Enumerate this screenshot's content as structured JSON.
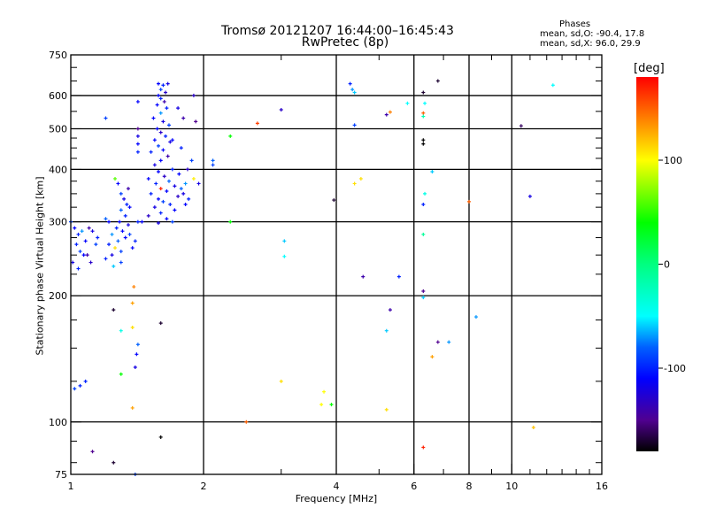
{
  "chart_data": {
    "type": "scatter",
    "title": "Tromsø 20121207 16:44:00–16:45:43",
    "subtitle": "RwPretec (8p)",
    "annotation": {
      "heading": "Phases",
      "line_o": "mean, sd,O: -90.4, 17.8",
      "line_x": "mean, sd,X:  96.0, 29.9"
    },
    "xlabel": "Frequency [MHz]",
    "ylabel": "Stationary phase Virtual Height [km]",
    "xscale": "log",
    "yscale": "log",
    "xlim": [
      1,
      16
    ],
    "ylim": [
      75,
      750
    ],
    "x_ticks": [
      1,
      2,
      4,
      6,
      8,
      10,
      16
    ],
    "x_tick_labels": [
      "1",
      "2",
      "4",
      "6",
      "8",
      "10",
      "16"
    ],
    "x_grid": [
      2,
      4,
      6,
      8,
      10
    ],
    "y_ticks": [
      75,
      100,
      200,
      300,
      400,
      500,
      600,
      750
    ],
    "y_tick_labels": [
      "75",
      "100",
      "200",
      "300",
      "400",
      "500",
      "600",
      "750"
    ],
    "y_grid": [
      100,
      200,
      300,
      400,
      500,
      600
    ],
    "grid": true,
    "colorbar": {
      "label": "[deg]",
      "range": [
        -180,
        180
      ],
      "ticks": [
        100,
        0,
        -100
      ],
      "tick_labels": [
        "100",
        "0",
        "-100"
      ],
      "stops": [
        [
          -180,
          "#000000"
        ],
        [
          -150,
          "#500090"
        ],
        [
          -110,
          "#0000ff"
        ],
        [
          -80,
          "#0060ff"
        ],
        [
          -50,
          "#00ffff"
        ],
        [
          0,
          "#00ff80"
        ],
        [
          40,
          "#00ff00"
        ],
        [
          100,
          "#ffff00"
        ],
        [
          140,
          "#ff8000"
        ],
        [
          180,
          "#ff0000"
        ]
      ]
    },
    "point_columns": [
      "frequency_MHz",
      "height_km",
      "phase_deg"
    ],
    "points": [
      [
        1.58,
        640,
        -110
      ],
      [
        1.62,
        635,
        -100
      ],
      [
        1.6,
        620,
        -90
      ],
      [
        1.66,
        640,
        -120
      ],
      [
        1.64,
        610,
        -130
      ],
      [
        1.58,
        600,
        -110
      ],
      [
        1.6,
        590,
        -100
      ],
      [
        1.63,
        580,
        -140
      ],
      [
        1.57,
        570,
        -110
      ],
      [
        1.65,
        560,
        -100
      ],
      [
        1.6,
        545,
        -70
      ],
      [
        1.54,
        530,
        -110
      ],
      [
        1.62,
        520,
        -120
      ],
      [
        1.67,
        510,
        -90
      ],
      [
        1.57,
        500,
        -110
      ],
      [
        1.6,
        490,
        -130
      ],
      [
        1.64,
        480,
        -100
      ],
      [
        1.55,
        470,
        -110
      ],
      [
        1.68,
        465,
        -120
      ],
      [
        1.58,
        455,
        -90
      ],
      [
        1.62,
        445,
        -110
      ],
      [
        1.52,
        440,
        -100
      ],
      [
        1.66,
        430,
        -140
      ],
      [
        1.6,
        420,
        -110
      ],
      [
        1.55,
        410,
        -120
      ],
      [
        1.7,
        400,
        -100
      ],
      [
        1.58,
        395,
        -110
      ],
      [
        1.63,
        385,
        -130
      ],
      [
        1.5,
        380,
        -110
      ],
      [
        1.67,
        375,
        -80
      ],
      [
        1.56,
        370,
        -100
      ],
      [
        1.72,
        365,
        -120
      ],
      [
        1.6,
        360,
        170
      ],
      [
        1.65,
        355,
        -110
      ],
      [
        1.52,
        350,
        -100
      ],
      [
        1.75,
        345,
        -130
      ],
      [
        1.58,
        340,
        -110
      ],
      [
        1.62,
        335,
        -90
      ],
      [
        1.68,
        330,
        -100
      ],
      [
        1.55,
        325,
        -120
      ],
      [
        1.72,
        320,
        -110
      ],
      [
        1.6,
        315,
        -100
      ],
      [
        1.5,
        310,
        -130
      ],
      [
        1.65,
        305,
        -110
      ],
      [
        1.7,
        300,
        -90
      ],
      [
        1.58,
        298,
        -120
      ],
      [
        1.45,
        300,
        -110
      ],
      [
        1.42,
        300,
        -100
      ],
      [
        1.78,
        360,
        -80
      ],
      [
        1.82,
        370,
        -70
      ],
      [
        1.8,
        350,
        -120
      ],
      [
        1.85,
        340,
        -100
      ],
      [
        1.76,
        390,
        -110
      ],
      [
        1.88,
        420,
        -90
      ],
      [
        1.9,
        380,
        105
      ],
      [
        1.84,
        400,
        -130
      ],
      [
        1.8,
        530,
        -140
      ],
      [
        1.9,
        600,
        -130
      ],
      [
        1.92,
        520,
        -150
      ],
      [
        1.75,
        560,
        -120
      ],
      [
        1.7,
        470,
        -110
      ],
      [
        1.78,
        450,
        -100
      ],
      [
        1.82,
        330,
        -110
      ],
      [
        1.95,
        370,
        -120
      ],
      [
        1.28,
        370,
        -110
      ],
      [
        1.3,
        350,
        -90
      ],
      [
        1.32,
        340,
        -120
      ],
      [
        1.34,
        330,
        -100
      ],
      [
        1.36,
        325,
        -110
      ],
      [
        1.3,
        320,
        -80
      ],
      [
        1.33,
        310,
        -100
      ],
      [
        1.29,
        300,
        -110
      ],
      [
        1.35,
        295,
        -120
      ],
      [
        1.27,
        290,
        -100
      ],
      [
        1.31,
        285,
        -110
      ],
      [
        1.36,
        280,
        -90
      ],
      [
        1.24,
        280,
        -70
      ],
      [
        1.28,
        270,
        -80
      ],
      [
        1.33,
        275,
        -110
      ],
      [
        1.22,
        265,
        -100
      ],
      [
        1.26,
        260,
        110
      ],
      [
        1.3,
        255,
        -90
      ],
      [
        1.24,
        250,
        -120
      ],
      [
        1.2,
        245,
        -100
      ],
      [
        1.38,
        260,
        -110
      ],
      [
        1.4,
        270,
        -100
      ],
      [
        1.35,
        360,
        -140
      ],
      [
        1.26,
        380,
        60
      ],
      [
        1.2,
        305,
        -80
      ],
      [
        1.22,
        300,
        -110
      ],
      [
        1.25,
        235,
        -60
      ],
      [
        1.3,
        240,
        -90
      ],
      [
        1.02,
        290,
        -110
      ],
      [
        1.04,
        280,
        -100
      ],
      [
        1.06,
        285,
        -70
      ],
      [
        1.1,
        290,
        -140
      ],
      [
        1.12,
        285,
        -120
      ],
      [
        1.03,
        265,
        -100
      ],
      [
        1.08,
        270,
        -110
      ],
      [
        1.05,
        255,
        -90
      ],
      [
        1.07,
        250,
        -110
      ],
      [
        1.09,
        250,
        -140
      ],
      [
        1.14,
        265,
        -90
      ],
      [
        1.01,
        240,
        -120
      ],
      [
        1.04,
        232,
        -100
      ],
      [
        1.11,
        240,
        -130
      ],
      [
        1.15,
        275,
        -100
      ],
      [
        1.0,
        300,
        -90
      ],
      [
        1.02,
        120,
        -90
      ],
      [
        1.05,
        122,
        -100
      ],
      [
        1.08,
        125,
        -100
      ],
      [
        1.12,
        85,
        -150
      ],
      [
        1.25,
        80,
        -170
      ],
      [
        1.4,
        75,
        -90
      ],
      [
        1.38,
        108,
        130
      ],
      [
        1.4,
        135,
        -120
      ],
      [
        1.41,
        145,
        -110
      ],
      [
        1.42,
        153,
        -80
      ],
      [
        1.3,
        130,
        40
      ],
      [
        1.3,
        165,
        -40
      ],
      [
        1.38,
        168,
        110
      ],
      [
        1.38,
        192,
        130
      ],
      [
        1.39,
        210,
        140
      ],
      [
        1.25,
        185,
        -170
      ],
      [
        1.6,
        172,
        -170
      ],
      [
        1.6,
        92,
        -180
      ],
      [
        1.42,
        580,
        -110
      ],
      [
        1.2,
        530,
        -90
      ],
      [
        1.42,
        480,
        -120
      ],
      [
        1.42,
        460,
        -110
      ],
      [
        1.42,
        500,
        -150
      ],
      [
        1.42,
        440,
        -100
      ],
      [
        2.1,
        410,
        -90
      ],
      [
        2.1,
        420,
        -80
      ],
      [
        2.3,
        480,
        40
      ],
      [
        2.3,
        300,
        40
      ],
      [
        2.65,
        515,
        160
      ],
      [
        3.0,
        555,
        -130
      ],
      [
        3.05,
        270,
        -60
      ],
      [
        3.05,
        248,
        -50
      ],
      [
        3.0,
        125,
        110
      ],
      [
        2.5,
        100,
        150
      ],
      [
        3.7,
        110,
        100
      ],
      [
        3.9,
        110,
        40
      ],
      [
        3.75,
        118,
        100
      ],
      [
        3.95,
        338,
        -170
      ],
      [
        4.3,
        640,
        -100
      ],
      [
        4.35,
        620,
        -70
      ],
      [
        4.4,
        610,
        -60
      ],
      [
        4.4,
        510,
        -90
      ],
      [
        4.4,
        370,
        110
      ],
      [
        4.55,
        380,
        110
      ],
      [
        4.6,
        222,
        -140
      ],
      [
        5.2,
        540,
        -140
      ],
      [
        5.3,
        548,
        140
      ],
      [
        5.55,
        222,
        -100
      ],
      [
        5.3,
        185,
        -140
      ],
      [
        5.2,
        165,
        -60
      ],
      [
        5.2,
        107,
        110
      ],
      [
        5.8,
        575,
        -50
      ],
      [
        6.3,
        610,
        -170
      ],
      [
        6.35,
        575,
        -50
      ],
      [
        6.3,
        545,
        150
      ],
      [
        6.3,
        535,
        -20
      ],
      [
        6.3,
        470,
        -180
      ],
      [
        6.3,
        460,
        -180
      ],
      [
        6.35,
        350,
        -40
      ],
      [
        6.3,
        330,
        -100
      ],
      [
        6.3,
        280,
        -10
      ],
      [
        6.3,
        205,
        -150
      ],
      [
        6.3,
        198,
        -60
      ],
      [
        6.3,
        87,
        170
      ],
      [
        6.6,
        395,
        -60
      ],
      [
        6.6,
        143,
        130
      ],
      [
        6.8,
        155,
        -150
      ],
      [
        7.2,
        155,
        -70
      ],
      [
        6.8,
        650,
        -170
      ],
      [
        8.0,
        335,
        150
      ],
      [
        8.3,
        178,
        -70
      ],
      [
        10.5,
        508,
        -160
      ],
      [
        11.0,
        345,
        -120
      ],
      [
        11.2,
        97,
        120
      ],
      [
        12.4,
        635,
        -50
      ]
    ]
  }
}
